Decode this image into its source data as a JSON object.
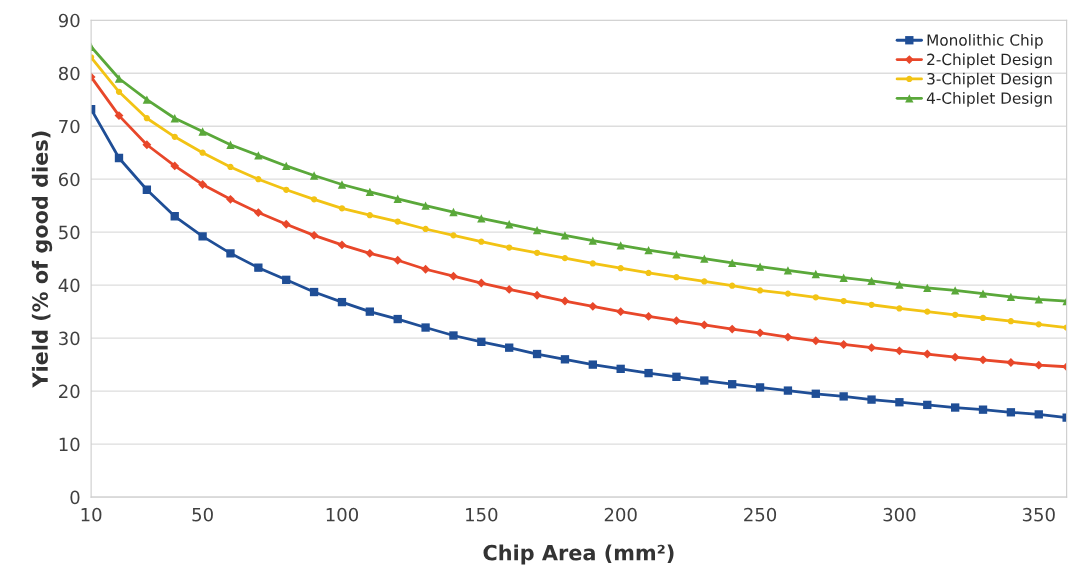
{
  "chart_data": {
    "type": "line",
    "xlabel": "Chip Area (mm²)",
    "ylabel": "Yield (% of good dies)",
    "x": [
      10,
      20,
      30,
      40,
      50,
      60,
      70,
      80,
      90,
      100,
      110,
      120,
      130,
      140,
      150,
      160,
      170,
      180,
      190,
      200,
      210,
      220,
      230,
      240,
      250,
      260,
      270,
      280,
      290,
      300,
      310,
      320,
      330,
      340,
      350,
      360
    ],
    "series": [
      {
        "name": "Monolithic Chip",
        "color": "#1f4e96",
        "marker": "square",
        "values": [
          73.2,
          64,
          58,
          53,
          49.2,
          46,
          43.3,
          41,
          38.7,
          36.8,
          35,
          33.6,
          32,
          30.5,
          29.3,
          28.2,
          27,
          26,
          25,
          24.2,
          23.4,
          22.7,
          22,
          21.3,
          20.7,
          20.1,
          19.5,
          19,
          18.4,
          17.9,
          17.4,
          16.9,
          16.5,
          16,
          15.6,
          15.0
        ]
      },
      {
        "name": "2-Chiplet Design",
        "color": "#e8472a",
        "marker": "diamond",
        "values": [
          79.3,
          72,
          66.5,
          62.5,
          59,
          56.2,
          53.7,
          51.5,
          49.4,
          47.6,
          46,
          44.7,
          43,
          41.7,
          40.4,
          39.2,
          38.1,
          37,
          36,
          35,
          34.1,
          33.3,
          32.5,
          31.7,
          31,
          30.2,
          29.5,
          28.8,
          28.2,
          27.6,
          27,
          26.4,
          25.9,
          25.4,
          24.9,
          24.6
        ]
      },
      {
        "name": "3-Chiplet Design",
        "color": "#f2c314",
        "marker": "circle",
        "values": [
          83,
          76.5,
          71.5,
          68,
          65,
          62.3,
          60,
          58,
          56.2,
          54.5,
          53.2,
          52,
          50.6,
          49.4,
          48.2,
          47.1,
          46.1,
          45.1,
          44.1,
          43.2,
          42.3,
          41.5,
          40.7,
          39.9,
          39,
          38.4,
          37.7,
          37,
          36.3,
          35.6,
          35,
          34.4,
          33.8,
          33.2,
          32.6,
          32
        ]
      },
      {
        "name": "4-Chiplet Design",
        "color": "#5aa83a",
        "marker": "triangle",
        "values": [
          85,
          79,
          75,
          71.5,
          69,
          66.5,
          64.5,
          62.5,
          60.7,
          59,
          57.6,
          56.3,
          55,
          53.8,
          52.6,
          51.5,
          50.4,
          49.4,
          48.4,
          47.5,
          46.6,
          45.8,
          45,
          44.2,
          43.5,
          42.8,
          42.1,
          41.4,
          40.8,
          40.1,
          39.5,
          39,
          38.4,
          37.8,
          37.3,
          37
        ]
      }
    ],
    "xlim": [
      10,
      360
    ],
    "xticks": [
      10,
      50,
      100,
      150,
      200,
      250,
      300,
      350
    ],
    "ylim": [
      0,
      90
    ],
    "yticks": [
      0,
      10,
      20,
      30,
      40,
      50,
      60,
      70,
      80,
      90
    ],
    "grid": "y",
    "legend": "top right",
    "line_style": "solid"
  }
}
